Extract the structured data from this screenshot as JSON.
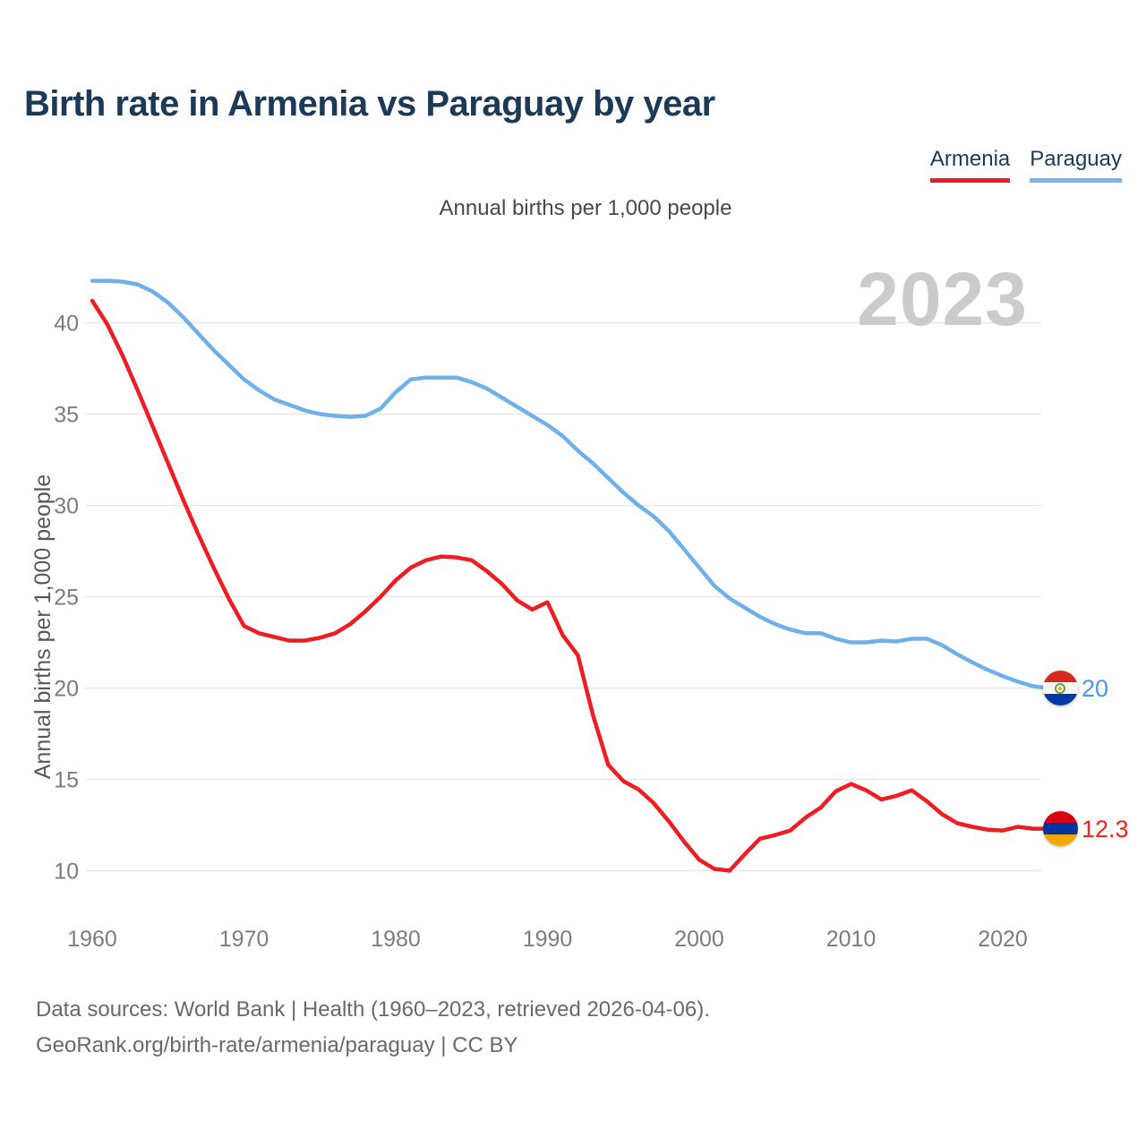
{
  "title": "Birth rate in Armenia vs Paraguay by year",
  "subtitle": "Annual births per 1,000 people",
  "watermark": "2023",
  "legend": {
    "items": [
      {
        "label": "Armenia",
        "underline_color": "#ee1c23"
      },
      {
        "label": "Paraguay",
        "underline_color": "#79b5ea"
      }
    ]
  },
  "footer": {
    "line1": "Data sources: World Bank | Health (1960–2023, retrieved 2026-04-06).",
    "line2": "GeoRank.org/birth-rate/armenia/paraguay | CC BY"
  },
  "chart_data": {
    "type": "line",
    "title": "Birth rate in Armenia vs Paraguay by year",
    "xlabel": "",
    "ylabel": "Annual births per 1,000 people",
    "x_start": 1960,
    "x_end": 2023,
    "xticks": [
      1960,
      1970,
      1980,
      1990,
      2000,
      2010,
      2020
    ],
    "yticks": [
      10,
      15,
      20,
      25,
      30,
      35,
      40
    ],
    "ylim": [
      8.5,
      43.5
    ],
    "grid": true,
    "legend_position": "top-right",
    "colors": {
      "grid": "#e8e8e8",
      "tick_text": "#7a7d80",
      "axis_title_text": "#55585c"
    },
    "series": [
      {
        "name": "Armenia",
        "color": "#ee1c23",
        "end_label": "12.3",
        "end_label_color": "#f3231c",
        "flag": "armenia",
        "values": [
          41.2,
          39.9,
          38.2,
          36.3,
          34.3,
          32.3,
          30.3,
          28.4,
          26.6,
          24.9,
          23.4,
          23.0,
          22.8,
          22.6,
          22.6,
          22.75,
          23.0,
          23.5,
          24.2,
          25.0,
          25.9,
          26.6,
          27.0,
          27.2,
          27.15,
          27.0,
          26.4,
          25.7,
          24.8,
          24.3,
          24.7,
          22.9,
          21.8,
          18.5,
          15.8,
          14.9,
          14.45,
          13.7,
          12.7,
          11.6,
          10.6,
          10.1,
          10.0,
          10.9,
          11.75,
          11.95,
          12.2,
          12.9,
          13.45,
          14.35,
          14.75,
          14.4,
          13.9,
          14.1,
          14.4,
          13.8,
          13.1,
          12.6,
          12.4,
          12.25,
          12.2,
          12.4,
          12.3,
          12.3
        ]
      },
      {
        "name": "Paraguay",
        "color": "#70b0e9",
        "end_label": "20",
        "end_label_color": "#4a97e3",
        "flag": "paraguay",
        "values": [
          42.3,
          42.3,
          42.25,
          42.1,
          41.7,
          41.1,
          40.3,
          39.4,
          38.5,
          37.7,
          36.9,
          36.3,
          35.8,
          35.5,
          35.2,
          35.0,
          34.9,
          34.85,
          34.9,
          35.3,
          36.2,
          36.9,
          37.0,
          37.0,
          37.0,
          36.75,
          36.4,
          35.9,
          35.4,
          34.9,
          34.4,
          33.8,
          33.0,
          32.3,
          31.5,
          30.7,
          30.0,
          29.4,
          28.6,
          27.6,
          26.6,
          25.6,
          24.9,
          24.4,
          23.9,
          23.5,
          23.2,
          23.0,
          23.0,
          22.7,
          22.5,
          22.5,
          22.6,
          22.55,
          22.7,
          22.7,
          22.35,
          21.85,
          21.4,
          21.0,
          20.65,
          20.35,
          20.1,
          20.0
        ]
      }
    ]
  }
}
